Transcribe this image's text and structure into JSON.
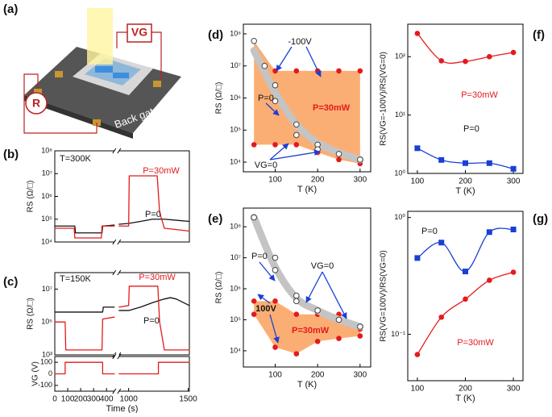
{
  "panel_a": {
    "label": "(a)",
    "gate_label": "VG",
    "resistance_label": "R",
    "back_gate_label": "Back gate"
  },
  "chart_data": [
    {
      "panel": "(b)",
      "type": "line",
      "ylabel": "RS (Ω/□)",
      "log_y": true,
      "xlim": [
        0,
        1510
      ],
      "xbreak": [
        460,
        920
      ],
      "ylim": [
        10000,
        100000000
      ],
      "yticks": [
        {
          "value": 10000,
          "label": "10⁴"
        },
        {
          "value": 100000,
          "label": "10⁵"
        },
        {
          "value": 1000000,
          "label": "10⁶"
        },
        {
          "value": 10000000,
          "label": "10⁷"
        },
        {
          "value": 100000000,
          "label": "10⁸"
        }
      ],
      "series": [
        {
          "color": "#111111",
          "line": true,
          "x": [
            0,
            155,
            160,
            365,
            370,
            460,
            690,
            920,
            1000,
            1100,
            1200,
            1300,
            1400,
            1510
          ],
          "values": [
            50000,
            50000,
            25000,
            25000,
            50000,
            55000,
            null,
            60000,
            65000,
            80000,
            100000,
            100000,
            90000,
            80000
          ]
        },
        {
          "color": "#e41a1c",
          "line": true,
          "x": [
            0,
            150,
            155,
            360,
            365,
            460,
            690,
            920,
            1000,
            1005,
            1240,
            1260,
            1300,
            1400,
            1510
          ],
          "values": [
            40000,
            40000,
            15000,
            15000,
            50000,
            50000,
            null,
            50000,
            50000,
            8000000,
            8000000,
            200000,
            40000,
            35000,
            30000
          ]
        }
      ],
      "annotations": [
        "T=300K",
        "P=30mW",
        "P=0"
      ]
    },
    {
      "panel": "(c)",
      "type": "line",
      "ylabel": "RS (Ω/□)",
      "log_y": true,
      "xlim": [
        0,
        1510
      ],
      "xbreak": [
        460,
        920
      ],
      "ylim": [
        1000,
        100000000
      ],
      "yticks": [
        {
          "value": 1000,
          "label": "10³"
        },
        {
          "value": 100000,
          "label": "10⁵"
        },
        {
          "value": 10000000,
          "label": "10⁷"
        }
      ],
      "series": [
        {
          "color": "#111111",
          "line": true,
          "x": [
            0,
            370,
            375,
            460,
            690,
            920,
            1000,
            1100,
            1200,
            1300,
            1350,
            1400,
            1510
          ],
          "values": [
            400000,
            400000,
            800000,
            800000,
            null,
            500000,
            500000,
            800000,
            1500000,
            2500000,
            3000000,
            2500000,
            1000000
          ]
        },
        {
          "color": "#e41a1c",
          "line": true,
          "x": [
            0,
            80,
            85,
            365,
            370,
            460,
            690,
            920,
            1000,
            1005,
            1245,
            1260,
            1300,
            1510
          ],
          "values": [
            100000,
            100000,
            2000,
            2000,
            150000,
            200000,
            null,
            800000,
            1000000,
            15000000,
            15000000,
            100000,
            2000,
            2000
          ]
        }
      ],
      "annotations": [
        "T=150K",
        "P=30mW",
        "P=0"
      ]
    },
    {
      "type": "line",
      "ylabel": "VG (V)",
      "xlabel": "Time (s)",
      "xlim": [
        0,
        1510
      ],
      "xbreak": [
        460,
        920
      ],
      "xticks": [
        0,
        100,
        200,
        300,
        400,
        1000,
        1500
      ],
      "ylim": [
        -150,
        150
      ],
      "yticks": [
        -100,
        0,
        100
      ],
      "series": [
        {
          "color": "#e41a1c",
          "line": true,
          "x": [
            0,
            80,
            80,
            370,
            370,
            460,
            690,
            920,
            1250,
            1250,
            1510
          ],
          "values": [
            0,
            0,
            100,
            100,
            0,
            0,
            null,
            0,
            0,
            100,
            100
          ]
        }
      ]
    },
    {
      "panel": "(d)",
      "type": "scatter",
      "xlabel": "T (K)",
      "ylabel": "RS (Ω/□)",
      "log_y": true,
      "xlim": [
        25,
        325
      ],
      "xticks": [
        100,
        200,
        300
      ],
      "ylim": [
        5000,
        200000000
      ],
      "yticks": [
        {
          "value": 10000,
          "label": "10⁴"
        },
        {
          "value": 100000,
          "label": "10⁵"
        },
        {
          "value": 1000000,
          "label": "10⁶"
        },
        {
          "value": 10000000,
          "label": "10⁷"
        },
        {
          "value": 100000000,
          "label": "10⁸"
        }
      ],
      "fill": {
        "between": [
          0,
          1
        ],
        "color": "#fbae74"
      },
      "series": [
        {
          "color": "#e41a1c",
          "mark": "dot",
          "x": [
            50,
            100,
            150,
            200,
            250,
            300
          ],
          "values": [
            60000000,
            7000000,
            7000000,
            7000000,
            7000000,
            7000000
          ]
        },
        {
          "color": "#e41a1c",
          "mark": "dot",
          "x": [
            50,
            100,
            150,
            200,
            250,
            300
          ],
          "values": [
            35000,
            35000,
            35000,
            20000,
            12000,
            9000
          ]
        },
        {
          "color": "#c4c4c4",
          "line": true,
          "smooth": true,
          "line_width": 9,
          "x": [
            50,
            100,
            150,
            200,
            250,
            300
          ],
          "values": [
            30000000,
            1500000,
            150000,
            40000,
            20000,
            12000
          ]
        },
        {
          "color": "#444444",
          "mark": "open",
          "x": [
            50,
            75,
            100,
            100,
            150,
            150,
            200,
            200,
            250,
            300
          ],
          "values": [
            60000000,
            10000000,
            2500000,
            800000,
            150000,
            70000,
            35000,
            25000,
            18000,
            12000
          ]
        }
      ],
      "annotations": [
        "-100V",
        "P=0",
        "P=30mW",
        "VG=0"
      ]
    },
    {
      "panel": "(e)",
      "type": "scatter",
      "xlabel": "T (K)",
      "ylabel": "RS (Ω/□)",
      "log_y": true,
      "xlim": [
        25,
        325
      ],
      "xticks": [
        100,
        200,
        300
      ],
      "ylim": [
        3000,
        400000000
      ],
      "yticks": [
        {
          "value": 10000,
          "label": "10⁴"
        },
        {
          "value": 100000,
          "label": "10⁵"
        },
        {
          "value": 1000000,
          "label": "10⁶"
        },
        {
          "value": 10000000,
          "label": "10⁷"
        },
        {
          "value": 100000000,
          "label": "10⁸"
        }
      ],
      "fill": {
        "between": [
          0,
          1
        ],
        "color": "#fbae74"
      },
      "series": [
        {
          "color": "#e41a1c",
          "mark": "dot",
          "x": [
            50,
            100,
            150,
            200,
            250,
            300
          ],
          "values": [
            400000,
            400000,
            150000,
            150000,
            150000,
            50000
          ]
        },
        {
          "color": "#e41a1c",
          "mark": "dot",
          "x": [
            50,
            100,
            150,
            200,
            250,
            300
          ],
          "values": [
            150000,
            13000,
            8000,
            20000,
            25000,
            30000
          ]
        },
        {
          "color": "#c4c4c4",
          "line": true,
          "smooth": true,
          "line_width": 9,
          "x": [
            50,
            100,
            150,
            200,
            250,
            300
          ],
          "values": [
            200000000,
            5000000,
            500000,
            200000,
            100000,
            60000
          ]
        },
        {
          "color": "#444444",
          "mark": "open",
          "x": [
            50,
            100,
            100,
            150,
            150,
            200,
            250,
            300
          ],
          "values": [
            200000000,
            10000000,
            4000000,
            600000,
            400000,
            200000,
            100000,
            60000
          ]
        }
      ],
      "annotations": [
        "P=0",
        "VG=0",
        "100V",
        "P=30mW"
      ]
    },
    {
      "panel": "(f)",
      "type": "scatter",
      "xlabel": "T (K)",
      "ylabel": "RS(VG=-100V)/RS(VG=0)",
      "log_y": true,
      "xlim": [
        80,
        320
      ],
      "xticks": [
        100,
        200,
        300
      ],
      "ylim": [
        1,
        360
      ],
      "yticks": [
        {
          "value": 1,
          "label": "10⁰"
        },
        {
          "value": 10,
          "label": "10¹"
        },
        {
          "value": 100,
          "label": "10²"
        }
      ],
      "series": [
        {
          "color": "#e41a1c",
          "mark": "dot",
          "line": true,
          "smooth": true,
          "x": [
            100,
            150,
            200,
            250,
            300
          ],
          "values": [
            250,
            85,
            83,
            100,
            118
          ]
        },
        {
          "color": "#1a3fd6",
          "mark": "square",
          "line": true,
          "smooth": true,
          "x": [
            100,
            150,
            200,
            250,
            300
          ],
          "values": [
            2.7,
            1.7,
            1.5,
            1.5,
            1.2
          ]
        }
      ],
      "annotations": [
        "P=30mW",
        "P=0"
      ]
    },
    {
      "panel": "(g)",
      "type": "scatter",
      "xlabel": "T (K)",
      "ylabel": "RS(VG=100V)/RS(VG=0)",
      "log_y": true,
      "xlim": [
        80,
        320
      ],
      "xticks": [
        100,
        200,
        300
      ],
      "ylim": [
        0.04,
        1.13
      ],
      "yticks": [
        {
          "value": 0.1,
          "label": "10⁻¹"
        },
        {
          "value": 1,
          "label": "10⁰"
        }
      ],
      "series": [
        {
          "color": "#1a3fd6",
          "mark": "square",
          "line": true,
          "smooth": true,
          "x": [
            100,
            150,
            200,
            250,
            300
          ],
          "values": [
            0.45,
            0.61,
            0.345,
            0.75,
            0.79
          ]
        },
        {
          "color": "#e41a1c",
          "mark": "dot",
          "line": true,
          "smooth": true,
          "x": [
            100,
            150,
            200,
            250,
            300
          ],
          "values": [
            0.067,
            0.14,
            0.2,
            0.29,
            0.34
          ]
        }
      ],
      "annotations": [
        "P=0",
        "P=30mW"
      ]
    }
  ]
}
